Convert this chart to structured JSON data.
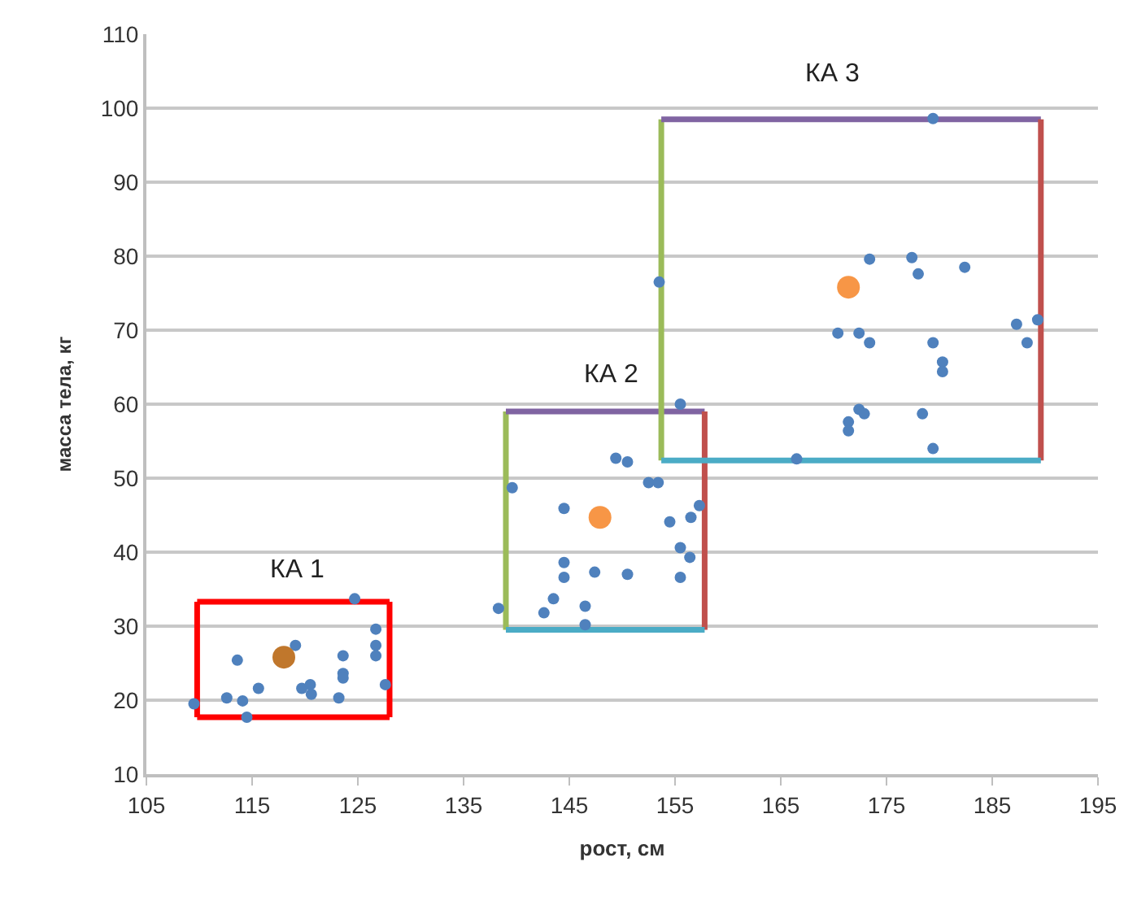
{
  "chart_data": {
    "type": "scatter",
    "xlabel": "рост, см",
    "ylabel": "масса тела, кг",
    "xlim": [
      105,
      195
    ],
    "xticks": [
      105,
      115,
      125,
      135,
      145,
      155,
      165,
      175,
      185,
      195
    ],
    "ylim": [
      10,
      110
    ],
    "yticks": [
      10,
      20,
      30,
      40,
      50,
      60,
      70,
      80,
      90,
      100,
      110
    ],
    "grid": "y",
    "marker": "circle",
    "series": [
      {
        "type": "line",
        "marker": "none",
        "color": "#ff0000",
        "x": [
          109.8,
          128.0
        ],
        "values": [
          33.3,
          33.3
        ]
      },
      {
        "type": "line",
        "marker": "none",
        "color": "#ff0000",
        "x": [
          128.0,
          128.0
        ],
        "values": [
          33.3,
          17.7
        ]
      },
      {
        "type": "line",
        "marker": "none",
        "color": "#ff0000",
        "x": [
          109.8,
          128.0
        ],
        "values": [
          17.7,
          17.7
        ]
      },
      {
        "type": "line",
        "marker": "none",
        "color": "#ff0000",
        "x": [
          109.8,
          109.8
        ],
        "values": [
          17.7,
          33.3
        ]
      },
      {
        "type": "line",
        "marker": "none",
        "color": "#9bbb59",
        "x": [
          139.0,
          139.0
        ],
        "values": [
          29.5,
          59.0
        ]
      },
      {
        "type": "line",
        "marker": "none",
        "color": "#8064a2",
        "x": [
          139.0,
          157.8
        ],
        "values": [
          59.0,
          59.0
        ]
      },
      {
        "type": "line",
        "marker": "none",
        "color": "#c0504d",
        "x": [
          157.8,
          157.8
        ],
        "values": [
          59.0,
          29.5
        ]
      },
      {
        "type": "line",
        "marker": "none",
        "color": "#4bacc6",
        "x": [
          139.0,
          157.8
        ],
        "values": [
          29.5,
          29.5
        ]
      },
      {
        "type": "line",
        "marker": "none",
        "color": "#9bbb59",
        "x": [
          153.7,
          153.7
        ],
        "values": [
          52.4,
          98.5
        ]
      },
      {
        "type": "line",
        "marker": "none",
        "color": "#8064a2",
        "x": [
          153.7,
          189.6
        ],
        "values": [
          98.5,
          98.5
        ]
      },
      {
        "type": "line",
        "marker": "none",
        "color": "#c0504d",
        "x": [
          189.6,
          189.6
        ],
        "values": [
          98.5,
          52.4
        ]
      },
      {
        "type": "line",
        "marker": "none",
        "color": "#4bacc6",
        "x": [
          153.7,
          189.6
        ],
        "values": [
          52.4,
          52.4
        ]
      },
      {
        "color": "#4f81bd",
        "x": [
          109.5,
          112.6,
          114.1,
          114.5,
          115.6,
          113.6,
          119.1,
          119.7,
          120.5,
          120.6,
          123.2,
          123.6,
          123.6,
          123.6,
          124.7,
          126.7,
          126.7,
          126.7,
          127.6,
          139.6,
          144.5,
          149.4,
          150.5,
          152.5,
          153.4,
          154.5,
          156.5,
          157.3,
          155.5,
          156.4,
          155.5,
          144.5,
          144.5,
          147.4,
          150.5,
          143.5,
          142.6,
          146.5,
          146.5,
          138.3,
          155.5,
          153.5,
          173.4,
          177.4,
          178.0,
          182.4,
          170.4,
          172.4,
          173.4,
          179.4,
          180.3,
          180.3,
          187.3,
          189.3,
          188.3,
          179.4,
          172.4,
          172.9,
          171.4,
          171.4,
          178.4,
          179.4,
          166.5
        ],
        "values": [
          19.5,
          20.3,
          19.9,
          17.7,
          21.6,
          25.4,
          27.4,
          21.6,
          22.1,
          20.8,
          20.3,
          26.0,
          23.6,
          23.0,
          33.7,
          29.6,
          27.4,
          26.0,
          22.1,
          48.7,
          45.9,
          52.7,
          52.2,
          49.4,
          49.4,
          44.1,
          44.7,
          46.3,
          40.6,
          39.3,
          36.6,
          38.6,
          36.6,
          37.3,
          37.0,
          33.7,
          31.8,
          32.7,
          30.2,
          32.4,
          60.0,
          76.5,
          79.6,
          79.8,
          77.6,
          78.5,
          69.6,
          69.6,
          68.3,
          68.3,
          65.7,
          64.4,
          70.8,
          71.4,
          68.3,
          98.6,
          59.3,
          58.7,
          57.6,
          56.4,
          58.7,
          54.0,
          52.6
        ]
      },
      {
        "colors": [
          "#c0772c",
          "#f79646",
          "#f79646"
        ],
        "x": [
          118.0,
          147.9,
          171.4
        ],
        "values": [
          25.8,
          44.7,
          75.8
        ]
      }
    ],
    "annotations": [
      "КА 1",
      "КА 2",
      "КА 3"
    ]
  }
}
